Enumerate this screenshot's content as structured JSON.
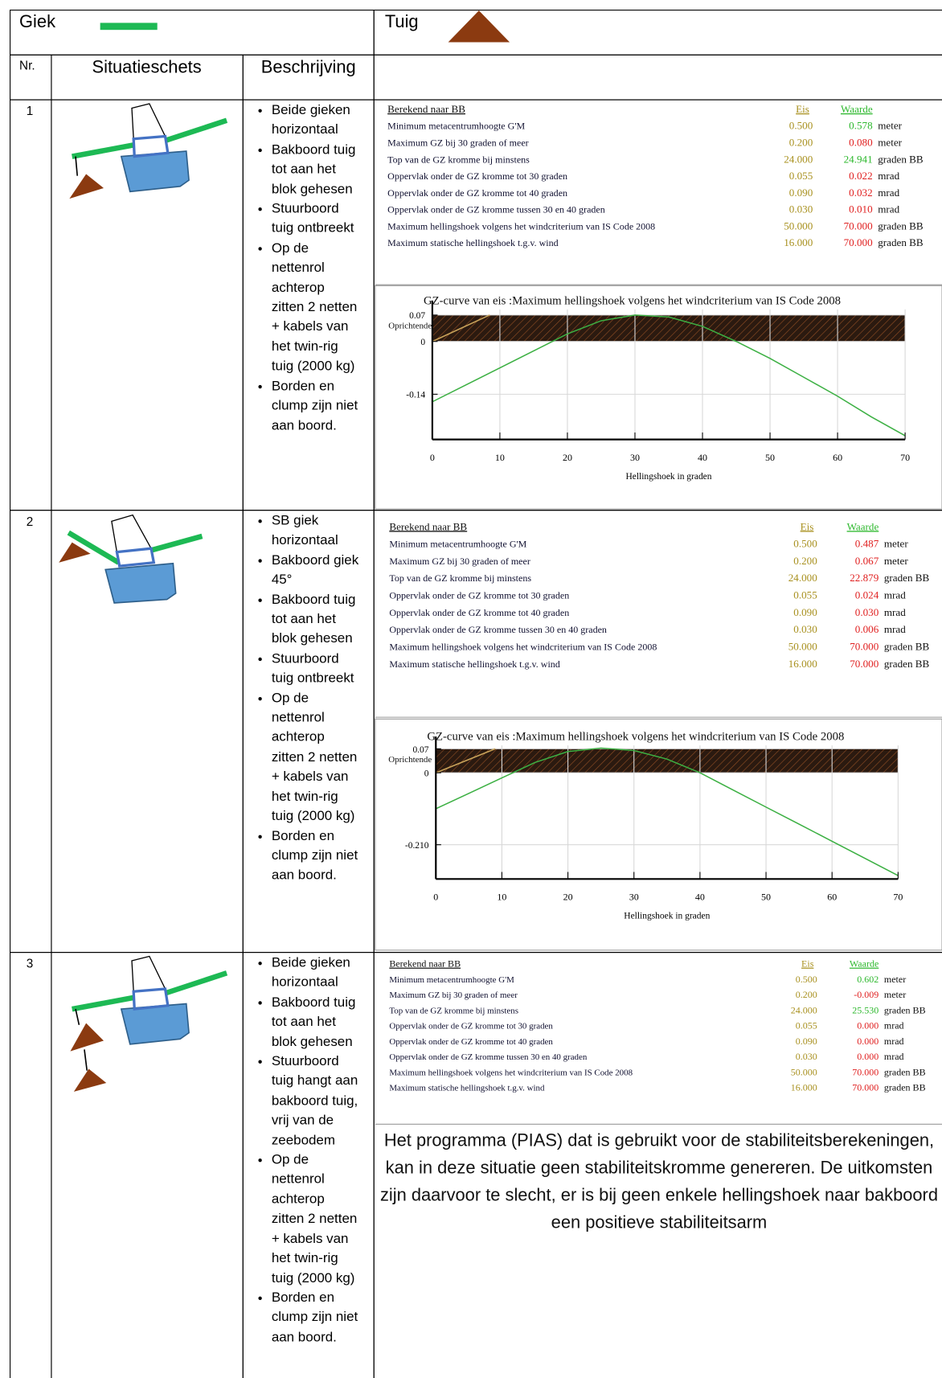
{
  "header": {
    "giek": "Giek",
    "tuig": "Tuig"
  },
  "columns": {
    "nr": "Nr.",
    "sketch": "Situatieschets",
    "description": "Beschrijving"
  },
  "rows": [
    {
      "nr": "1",
      "description": [
        "Beide gieken horizontaal",
        "Bakboord tuig tot aan het blok gehesen",
        "Stuurboord tuig ontbreekt",
        "Op de nettenrol achterop zitten 2 netten + kabels van het twin-rig tuig (2000 kg)",
        "Borden en clump zijn niet aan boord."
      ],
      "results": {
        "title": "Berekend naar BB",
        "eis_label": "Eis",
        "waarde_label": "Waarde",
        "items": [
          {
            "label": "Minimum metacentrumhoogte G'M",
            "eis": "0.500",
            "waarde": "0.578",
            "unit": "meter",
            "waarde_color": "#2db82d"
          },
          {
            "label": "Maximum GZ bij 30 graden of meer",
            "eis": "0.200",
            "waarde": "0.080",
            "unit": "meter",
            "waarde_color": "#e02020"
          },
          {
            "label": "Top van de GZ kromme bij minstens",
            "eis": "24.000",
            "waarde": "24.941",
            "unit": "graden BB",
            "waarde_color": "#2db82d"
          },
          {
            "label": "Oppervlak onder de GZ kromme tot 30 graden",
            "eis": "0.055",
            "waarde": "0.022",
            "unit": "mrad",
            "waarde_color": "#e02020"
          },
          {
            "label": "Oppervlak onder de GZ kromme tot 40 graden",
            "eis": "0.090",
            "waarde": "0.032",
            "unit": "mrad",
            "waarde_color": "#e02020"
          },
          {
            "label": "Oppervlak onder de GZ kromme tussen 30 en 40 graden",
            "eis": "0.030",
            "waarde": "0.010",
            "unit": "mrad",
            "waarde_color": "#e02020"
          },
          {
            "label": "Maximum hellingshoek volgens het windcriterium van IS Code 2008",
            "eis": "50.000",
            "waarde": "70.000",
            "unit": "graden BB",
            "waarde_color": "#e02020"
          },
          {
            "label": "Maximum statische hellingshoek t.g.v. wind",
            "eis": "16.000",
            "waarde": "70.000",
            "unit": "graden BB",
            "waarde_color": "#e02020"
          }
        ]
      },
      "chart": {
        "type": "line",
        "title": "GZ-curve van eis :Maximum hellingshoek volgens het windcriterium van IS Code 2008",
        "y_label": "Oprichtende",
        "x_label": "Hellingshoek in graden",
        "x": [
          0,
          5,
          10,
          15,
          20,
          25,
          30,
          35,
          40,
          45,
          50,
          55,
          60,
          65,
          70
        ],
        "series": [
          {
            "color": "#3cb043",
            "values": [
              -0.16,
              -0.115,
              -0.07,
              -0.025,
              0.02,
              0.055,
              0.07,
              0.065,
              0.04,
              0.0,
              -0.045,
              -0.095,
              -0.145,
              -0.2,
              -0.25
            ]
          },
          {
            "color": "#c9a35a",
            "x": [
              0,
              8.5
            ],
            "values": [
              0,
              0.07
            ]
          }
        ],
        "band_color": "url(#hatch)",
        "xlim": [
          0,
          70
        ],
        "ylim": [
          -0.26,
          0.085
        ],
        "xticks": [
          0,
          10,
          20,
          30,
          40,
          50,
          60,
          70
        ],
        "yticks": [
          0.07,
          0,
          -0.14
        ],
        "grid": true
      }
    },
    {
      "nr": "2",
      "description": [
        "SB giek horizontaal",
        "Bakboord giek 45°",
        "Bakboord tuig tot aan het blok gehesen",
        "Stuurboord tuig ontbreekt",
        "Op de nettenrol achterop zitten 2 netten + kabels van het twin-rig tuig (2000 kg)",
        "Borden en clump zijn niet aan boord."
      ],
      "results": {
        "title": "Berekend naar BB",
        "eis_label": "Eis",
        "waarde_label": "Waarde",
        "items": [
          {
            "label": "Minimum metacentrumhoogte G'M",
            "eis": "0.500",
            "waarde": "0.487",
            "unit": "meter",
            "waarde_color": "#e02020"
          },
          {
            "label": "Maximum GZ bij 30 graden of meer",
            "eis": "0.200",
            "waarde": "0.067",
            "unit": "meter",
            "waarde_color": "#e02020"
          },
          {
            "label": "Top van de GZ kromme bij minstens",
            "eis": "24.000",
            "waarde": "22.879",
            "unit": "graden BB",
            "waarde_color": "#e02020"
          },
          {
            "label": "Oppervlak onder de GZ kromme tot 30 graden",
            "eis": "0.055",
            "waarde": "0.024",
            "unit": "mrad",
            "waarde_color": "#e02020"
          },
          {
            "label": "Oppervlak onder de GZ kromme tot 40 graden",
            "eis": "0.090",
            "waarde": "0.030",
            "unit": "mrad",
            "waarde_color": "#e02020"
          },
          {
            "label": "Oppervlak onder de GZ kromme tussen 30 en 40 graden",
            "eis": "0.030",
            "waarde": "0.006",
            "unit": "mrad",
            "waarde_color": "#e02020"
          },
          {
            "label": "Maximum hellingshoek volgens het windcriterium van IS Code 2008",
            "eis": "50.000",
            "waarde": "70.000",
            "unit": "graden BB",
            "waarde_color": "#e02020"
          },
          {
            "label": "Maximum statische hellingshoek t.g.v. wind",
            "eis": "16.000",
            "waarde": "70.000",
            "unit": "graden BB",
            "waarde_color": "#e02020"
          }
        ]
      },
      "chart": {
        "type": "line",
        "title": "GZ-curve van eis :Maximum hellingshoek volgens het windcriterium van IS Code 2008",
        "y_label": "Oprichtende",
        "x_label": "Hellingshoek in graden",
        "x": [
          0,
          5,
          10,
          15,
          20,
          25,
          30,
          35,
          40,
          45,
          50,
          55,
          60,
          65,
          70
        ],
        "series": [
          {
            "color": "#3cb043",
            "values": [
              -0.105,
              -0.06,
              -0.015,
              0.03,
              0.062,
              0.072,
              0.065,
              0.04,
              0.0,
              -0.05,
              -0.1,
              -0.15,
              -0.2,
              -0.25,
              -0.3
            ]
          },
          {
            "color": "#c9a35a",
            "x": [
              0,
              9
            ],
            "values": [
              0,
              0.07
            ]
          }
        ],
        "band_color": "url(#hatch)",
        "xlim": [
          0,
          70
        ],
        "ylim": [
          -0.31,
          0.08
        ],
        "xticks": [
          0,
          10,
          20,
          30,
          40,
          50,
          60,
          70
        ],
        "yticks": [
          0.07,
          0,
          {
            "value": -0.21,
            "label": "-0.210"
          }
        ],
        "grid": true
      }
    },
    {
      "nr": "3",
      "description": [
        "Beide gieken horizontaal",
        "Bakboord tuig tot aan het blok gehesen",
        "Stuurboord tuig hangt aan bakboord tuig, vrij van de zeebodem",
        "Op de nettenrol achterop zitten 2 netten + kabels van het twin-rig tuig (2000 kg)",
        "Borden en clump zijn niet aan boord."
      ],
      "results": {
        "title": "Berekend naar BB",
        "eis_label": "Eis",
        "waarde_label": "Waarde",
        "items": [
          {
            "label": "Minimum metacentrumhoogte G'M",
            "eis": "0.500",
            "waarde": "0.602",
            "unit": "meter",
            "waarde_color": "#2db82d"
          },
          {
            "label": "Maximum GZ bij 30 graden of meer",
            "eis": "0.200",
            "waarde": "-0.009",
            "unit": "meter",
            "waarde_color": "#e02020"
          },
          {
            "label": "Top van de GZ kromme bij minstens",
            "eis": "24.000",
            "waarde": "25.530",
            "unit": "graden BB",
            "waarde_color": "#2db82d"
          },
          {
            "label": "Oppervlak onder de GZ kromme tot 30 graden",
            "eis": "0.055",
            "waarde": "0.000",
            "unit": "mrad",
            "waarde_color": "#e02020"
          },
          {
            "label": "Oppervlak onder de GZ kromme tot 40 graden",
            "eis": "0.090",
            "waarde": "0.000",
            "unit": "mrad",
            "waarde_color": "#e02020"
          },
          {
            "label": "Oppervlak onder de GZ kromme tussen 30 en 40 graden",
            "eis": "0.030",
            "waarde": "0.000",
            "unit": "mrad",
            "waarde_color": "#e02020"
          },
          {
            "label": "Maximum hellingshoek volgens het windcriterium van IS Code 2008",
            "eis": "50.000",
            "waarde": "70.000",
            "unit": "graden BB",
            "waarde_color": "#e02020"
          },
          {
            "label": "Maximum statische hellingshoek t.g.v. wind",
            "eis": "16.000",
            "waarde": "70.000",
            "unit": "graden BB",
            "waarde_color": "#e02020"
          }
        ]
      },
      "note": "Het programma (PIAS) dat is gebruikt voor de stabiliteitsberekeningen, kan in deze situatie geen stabiliteitskromme genereren. De uitkomsten zijn daarvoor te slecht, er is bij geen enkele hellingshoek naar bakboord een positieve stabiliteitsarm"
    }
  ]
}
